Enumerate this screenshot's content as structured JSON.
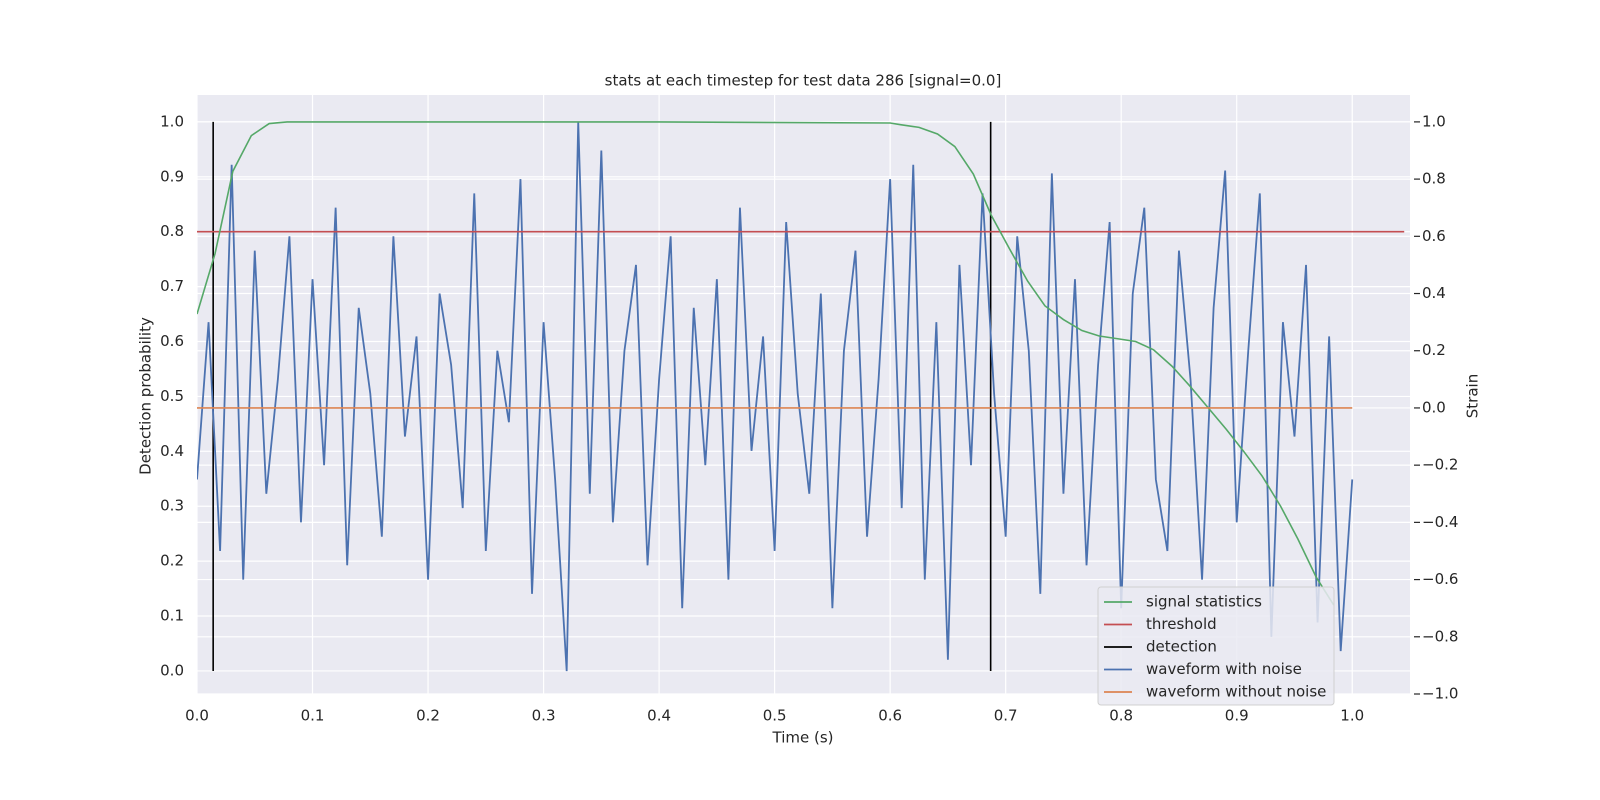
{
  "chart_data": {
    "type": "line",
    "title": "stats at each timestep for test data 286 [signal=0.0]",
    "x_label": "Time (s)",
    "y_label": "Detection probability",
    "y2_label": "Strain",
    "xlim": [
      0,
      1.05
    ],
    "ylim": [
      -0.042,
      1.049
    ],
    "y2lim": [
      -1.0,
      1.094
    ],
    "xticks": [
      {
        "value": 0,
        "label": "0.0"
      },
      0.1,
      0.2,
      0.3,
      0.4,
      0.5,
      0.6,
      0.7,
      0.8,
      0.9,
      {
        "value": 1,
        "label": "1.0"
      }
    ],
    "yticks": [
      {
        "value": 0,
        "label": "0.0"
      },
      0.1,
      0.2,
      0.3,
      0.4,
      0.5,
      0.6,
      0.7,
      0.8,
      0.9,
      {
        "value": 1,
        "label": "1.0"
      }
    ],
    "y2ticks": [
      {
        "value": -1,
        "label": "−1.0"
      },
      {
        "value": -0.8,
        "label": "−0.8"
      },
      {
        "value": -0.6,
        "label": "−0.6"
      },
      {
        "value": -0.4,
        "label": "−0.4"
      },
      {
        "value": -0.2,
        "label": "−0.2"
      },
      {
        "value": 0,
        "label": "0.0"
      },
      0.2,
      0.4,
      0.6,
      0.8,
      {
        "value": 1,
        "label": "1.0"
      }
    ],
    "grid": true,
    "background": "#eaeaf2",
    "legend": "lower right",
    "series": [
      {
        "name": "signal statistics",
        "color": "#55a868",
        "axis": "y",
        "x": [
          0,
          0.0156,
          0.031,
          0.047,
          0.0625,
          0.078,
          0.2,
          0.4,
          0.6,
          0.609,
          0.625,
          0.641,
          0.656,
          0.672,
          0.6875,
          0.703,
          0.719,
          0.734,
          0.75,
          0.766,
          0.781,
          0.797,
          0.8125,
          0.828,
          0.844,
          0.859,
          0.875,
          0.891,
          0.906,
          0.922,
          0.938,
          0.953,
          0.969,
          0.984
        ],
        "values": [
          0.65,
          0.76,
          0.91,
          0.975,
          0.997,
          1.0,
          1.0,
          1.0,
          0.998,
          0.995,
          0.99,
          0.978,
          0.955,
          0.905,
          0.83,
          0.77,
          0.71,
          0.665,
          0.64,
          0.62,
          0.61,
          0.605,
          0.6,
          0.585,
          0.555,
          0.52,
          0.48,
          0.44,
          0.4,
          0.355,
          0.3,
          0.24,
          0.17,
          0.12
        ]
      },
      {
        "name": "threshold",
        "color": "#c44e52",
        "axis": "y",
        "x": [
          0,
          1.045
        ],
        "values": [
          0.8,
          0.8
        ]
      },
      {
        "name": "detection",
        "color": "#000000",
        "axis": "y",
        "x": [
          0.014,
          0.014,
          null,
          0.687,
          0.687
        ],
        "values": [
          0,
          1,
          null,
          0,
          1
        ]
      },
      {
        "name": "waveform with noise",
        "color": "#4c72b0",
        "axis": "y2",
        "x": [
          0,
          0.01,
          0.02,
          0.03,
          0.04,
          0.05,
          0.06,
          0.07,
          0.08,
          0.09,
          0.1,
          0.11,
          0.12,
          0.13,
          0.14,
          0.15,
          0.16,
          0.17,
          0.18,
          0.19,
          0.2,
          0.21,
          0.22,
          0.23,
          0.24,
          0.25,
          0.26,
          0.27,
          0.28,
          0.29,
          0.3,
          0.31,
          0.32,
          0.33,
          0.34,
          0.35,
          0.36,
          0.37,
          0.38,
          0.39,
          0.4,
          0.41,
          0.42,
          0.43,
          0.44,
          0.45,
          0.46,
          0.47,
          0.48,
          0.49,
          0.5,
          0.51,
          0.52,
          0.53,
          0.54,
          0.55,
          0.56,
          0.57,
          0.58,
          0.59,
          0.6,
          0.61,
          0.62,
          0.63,
          0.64,
          0.65,
          0.66,
          0.67,
          0.68,
          0.69,
          0.7,
          0.71,
          0.72,
          0.73,
          0.74,
          0.75,
          0.76,
          0.77,
          0.78,
          0.79,
          0.8,
          0.81,
          0.82,
          0.83,
          0.84,
          0.85,
          0.86,
          0.87,
          0.88,
          0.89,
          0.9,
          0.91,
          0.92,
          0.93,
          0.94,
          0.95,
          0.96,
          0.97,
          0.98,
          0.99,
          1.0
        ],
        "values": [
          -0.25,
          0.3,
          -0.5,
          0.85,
          -0.6,
          0.55,
          -0.3,
          0.1,
          0.6,
          -0.4,
          0.45,
          -0.2,
          0.7,
          -0.55,
          0.35,
          0.05,
          -0.45,
          0.6,
          -0.1,
          0.25,
          -0.6,
          0.4,
          0.15,
          -0.35,
          0.75,
          -0.5,
          0.2,
          -0.05,
          0.8,
          -0.65,
          0.3,
          -0.25,
          -0.92,
          1.0,
          -0.3,
          0.9,
          -0.4,
          0.2,
          0.5,
          -0.55,
          0.1,
          0.6,
          -0.7,
          0.35,
          -0.2,
          0.45,
          -0.6,
          0.7,
          -0.15,
          0.25,
          -0.5,
          0.65,
          0.05,
          -0.3,
          0.4,
          -0.7,
          0.2,
          0.55,
          -0.45,
          0.1,
          0.8,
          -0.35,
          0.85,
          -0.6,
          0.3,
          -0.88,
          0.5,
          -0.2,
          0.75,
          0.05,
          -0.45,
          0.6,
          0.2,
          -0.65,
          0.82,
          -0.3,
          0.45,
          -0.55,
          0.15,
          0.65,
          -0.7,
          0.4,
          0.7,
          -0.25,
          -0.5,
          0.55,
          0.1,
          -0.6,
          0.35,
          0.83,
          -0.4,
          0.2,
          0.75,
          -0.8,
          0.3,
          -0.1,
          0.5,
          -0.75,
          0.25,
          -0.85,
          -0.25
        ]
      },
      {
        "name": "waveform without noise",
        "color": "#dd8452",
        "axis": "y2",
        "x": [
          0,
          1.0
        ],
        "values": [
          0,
          0
        ]
      }
    ]
  }
}
